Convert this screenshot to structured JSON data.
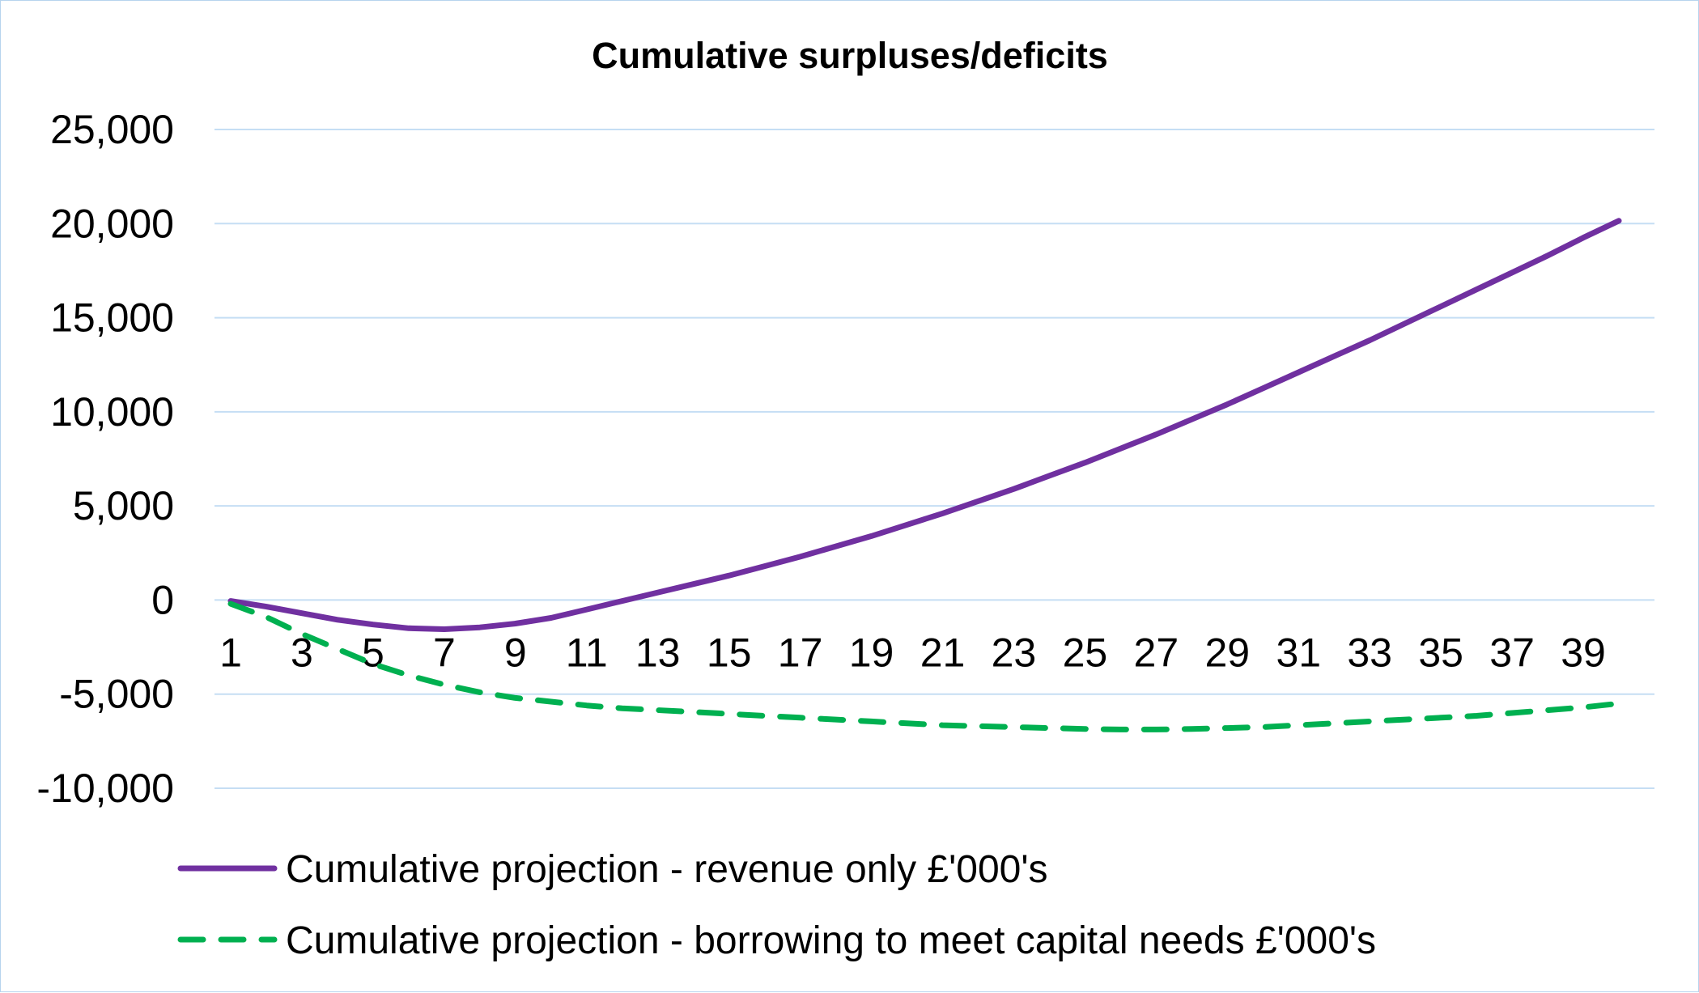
{
  "chart_data": {
    "type": "line",
    "title": "Cumulative surpluses/deficits",
    "xlabel": "",
    "ylabel": "",
    "x": [
      1,
      2,
      3,
      4,
      5,
      6,
      7,
      8,
      9,
      10,
      11,
      12,
      13,
      14,
      15,
      16,
      17,
      18,
      19,
      20,
      21,
      22,
      23,
      24,
      25,
      26,
      27,
      28,
      29,
      30,
      31,
      32,
      33,
      34,
      35,
      36,
      37,
      38,
      39,
      40
    ],
    "x_tick_labels": [
      "1",
      "3",
      "5",
      "7",
      "9",
      "11",
      "13",
      "15",
      "17",
      "19",
      "21",
      "23",
      "25",
      "27",
      "29",
      "31",
      "33",
      "35",
      "37",
      "39"
    ],
    "ylim": [
      -10000,
      25000
    ],
    "y_ticks": [
      25000,
      20000,
      15000,
      10000,
      5000,
      0,
      -5000,
      -10000
    ],
    "y_tick_labels": [
      "25,000",
      "20,000",
      "15,000",
      "10,000",
      "5,000",
      "0",
      "-5,000",
      "-10,000"
    ],
    "grid": true,
    "legend_position": "bottom",
    "series": [
      {
        "name": "Cumulative projection - revenue only £'000's",
        "color": "#7030a0",
        "style": "solid",
        "values": [
          -50,
          -350,
          -700,
          -1050,
          -1300,
          -1500,
          -1550,
          -1450,
          -1250,
          -950,
          -500,
          -50,
          400,
          850,
          1300,
          1800,
          2300,
          2850,
          3400,
          4000,
          4600,
          5250,
          5900,
          6600,
          7300,
          8050,
          8800,
          9600,
          10400,
          11250,
          12100,
          12950,
          13800,
          14700,
          15600,
          16500,
          17400,
          18300,
          19250,
          20150
        ]
      },
      {
        "name": "Cumulative projection - borrowing to meet capital needs £'000's",
        "color": "#00b050",
        "style": "dashed",
        "values": [
          -200,
          -900,
          -1800,
          -2600,
          -3400,
          -4000,
          -4500,
          -4900,
          -5200,
          -5400,
          -5600,
          -5750,
          -5850,
          -5950,
          -6050,
          -6150,
          -6250,
          -6350,
          -6450,
          -6550,
          -6650,
          -6700,
          -6750,
          -6800,
          -6850,
          -6880,
          -6880,
          -6850,
          -6800,
          -6750,
          -6650,
          -6550,
          -6450,
          -6350,
          -6250,
          -6150,
          -6000,
          -5850,
          -5700,
          -5500
        ]
      }
    ]
  }
}
